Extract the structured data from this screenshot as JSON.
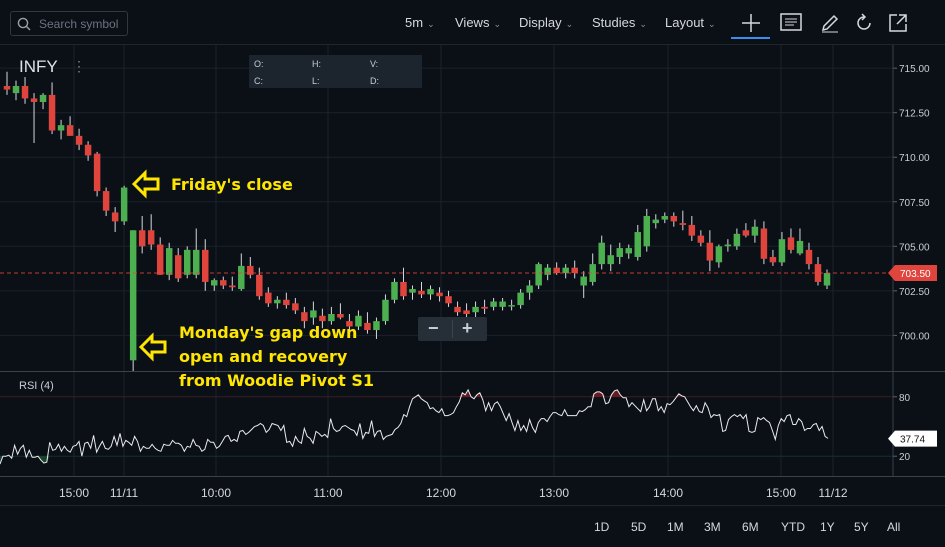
{
  "search": {
    "placeholder": "Search symbol"
  },
  "toolbar": {
    "interval": "5m",
    "views": "Views",
    "display": "Display",
    "studies": "Studies",
    "layout": "Layout"
  },
  "symbol": "INFY",
  "ohlc_labels": {
    "o": "O:",
    "h": "H:",
    "v": "V:",
    "c": "C:",
    "l": "L:",
    "d": "D:"
  },
  "annotations": {
    "friday_close": "Friday's close",
    "monday_line1": "Monday's gap down",
    "monday_line2": "open and recovery",
    "monday_line3": "from Woodie Pivot S1"
  },
  "rsi_label": "RSI (4)",
  "ranges": [
    "1D",
    "5D",
    "1M",
    "3M",
    "6M",
    "YTD",
    "1Y",
    "5Y",
    "All"
  ],
  "colors": {
    "up": "#4caf50",
    "down": "#e0453d",
    "accent": "#3c8df0",
    "annotation": "#ffe600",
    "background": "#0b0f16"
  },
  "icons": [
    "search-icon",
    "crosshair-icon",
    "comment-icon",
    "pencil-icon",
    "reset-icon",
    "expand-icon"
  ],
  "chart_data": [
    {
      "type": "candlestick",
      "symbol": "INFY",
      "ylim": [
        698.0,
        716.3
      ],
      "yticks": [
        "715.00",
        "712.50",
        "710.00",
        "707.50",
        "705.00",
        "702.50",
        "700.00"
      ],
      "xtick_labels": [
        "15:00",
        "11/11",
        "10:00",
        "11:00",
        "12:00",
        "13:00",
        "14:00",
        "15:00",
        "11/12"
      ],
      "last_price": "703.50",
      "candles": [
        {
          "o": 714.0,
          "h": 714.8,
          "l": 713.5,
          "c": 713.8
        },
        {
          "o": 713.6,
          "h": 714.3,
          "l": 713.2,
          "c": 714.0
        },
        {
          "o": 714.0,
          "h": 714.5,
          "l": 713.0,
          "c": 713.3
        },
        {
          "o": 713.3,
          "h": 713.6,
          "l": 710.8,
          "c": 713.1
        },
        {
          "o": 713.1,
          "h": 713.6,
          "l": 712.7,
          "c": 713.5
        },
        {
          "o": 713.5,
          "h": 714.2,
          "l": 711.3,
          "c": 711.5
        },
        {
          "o": 711.5,
          "h": 712.1,
          "l": 711.0,
          "c": 711.8
        },
        {
          "o": 711.8,
          "h": 712.3,
          "l": 711.2,
          "c": 711.2
        },
        {
          "o": 711.2,
          "h": 711.6,
          "l": 710.4,
          "c": 710.7
        },
        {
          "o": 710.7,
          "h": 710.9,
          "l": 709.8,
          "c": 710.1
        },
        {
          "o": 710.2,
          "h": 710.3,
          "l": 707.8,
          "c": 708.1
        },
        {
          "o": 708.1,
          "h": 708.3,
          "l": 706.7,
          "c": 707.0
        },
        {
          "o": 706.9,
          "h": 707.2,
          "l": 705.8,
          "c": 706.4
        },
        {
          "o": 706.4,
          "h": 708.4,
          "l": 706.2,
          "c": 708.3
        },
        {
          "o": 698.6,
          "h": 705.9,
          "l": 698.0,
          "c": 705.9
        },
        {
          "o": 705.9,
          "h": 706.7,
          "l": 704.6,
          "c": 705.0
        },
        {
          "o": 705.9,
          "h": 706.8,
          "l": 704.8,
          "c": 705.1
        },
        {
          "o": 705.1,
          "h": 705.5,
          "l": 703.4,
          "c": 703.4
        },
        {
          "o": 703.4,
          "h": 705.2,
          "l": 703.1,
          "c": 704.9
        },
        {
          "o": 704.5,
          "h": 704.9,
          "l": 703.0,
          "c": 703.2
        },
        {
          "o": 703.4,
          "h": 705.0,
          "l": 703.2,
          "c": 704.8
        },
        {
          "o": 703.4,
          "h": 706.0,
          "l": 703.2,
          "c": 704.8
        },
        {
          "o": 704.8,
          "h": 705.4,
          "l": 702.5,
          "c": 703.0
        },
        {
          "o": 702.8,
          "h": 703.2,
          "l": 702.5,
          "c": 703.1
        },
        {
          "o": 703.1,
          "h": 703.3,
          "l": 702.6,
          "c": 702.8
        },
        {
          "o": 702.8,
          "h": 703.3,
          "l": 702.5,
          "c": 702.7
        },
        {
          "o": 702.6,
          "h": 704.6,
          "l": 702.5,
          "c": 703.9
        },
        {
          "o": 703.9,
          "h": 704.4,
          "l": 703.2,
          "c": 703.4
        },
        {
          "o": 703.4,
          "h": 703.8,
          "l": 702.0,
          "c": 702.2
        },
        {
          "o": 702.4,
          "h": 702.7,
          "l": 701.6,
          "c": 701.8
        },
        {
          "o": 701.8,
          "h": 702.2,
          "l": 701.5,
          "c": 702.0
        },
        {
          "o": 702.0,
          "h": 702.4,
          "l": 701.5,
          "c": 701.7
        },
        {
          "o": 701.8,
          "h": 702.1,
          "l": 701.2,
          "c": 701.4
        },
        {
          "o": 701.3,
          "h": 701.6,
          "l": 700.4,
          "c": 700.8
        },
        {
          "o": 701.0,
          "h": 701.9,
          "l": 700.6,
          "c": 701.4
        },
        {
          "o": 701.1,
          "h": 701.5,
          "l": 700.4,
          "c": 700.8
        },
        {
          "o": 700.8,
          "h": 701.6,
          "l": 700.6,
          "c": 701.2
        },
        {
          "o": 701.2,
          "h": 701.8,
          "l": 700.9,
          "c": 701.0
        },
        {
          "o": 700.8,
          "h": 701.2,
          "l": 700.1,
          "c": 700.5
        },
        {
          "o": 700.5,
          "h": 701.4,
          "l": 700.3,
          "c": 701.1
        },
        {
          "o": 700.7,
          "h": 701.3,
          "l": 700.1,
          "c": 700.3
        },
        {
          "o": 700.3,
          "h": 701.0,
          "l": 699.8,
          "c": 700.8
        },
        {
          "o": 700.8,
          "h": 702.3,
          "l": 700.6,
          "c": 702.0
        },
        {
          "o": 702.0,
          "h": 703.2,
          "l": 701.8,
          "c": 703.0
        },
        {
          "o": 703.0,
          "h": 703.8,
          "l": 702.0,
          "c": 702.2
        },
        {
          "o": 702.4,
          "h": 702.8,
          "l": 702.0,
          "c": 702.6
        },
        {
          "o": 702.5,
          "h": 703.0,
          "l": 702.1,
          "c": 702.3
        },
        {
          "o": 702.3,
          "h": 702.8,
          "l": 702.0,
          "c": 702.6
        },
        {
          "o": 702.4,
          "h": 702.7,
          "l": 701.9,
          "c": 702.2
        },
        {
          "o": 702.2,
          "h": 702.5,
          "l": 701.6,
          "c": 701.8
        },
        {
          "o": 701.6,
          "h": 701.9,
          "l": 701.1,
          "c": 701.3
        },
        {
          "o": 701.4,
          "h": 701.8,
          "l": 701.0,
          "c": 701.2
        },
        {
          "o": 701.3,
          "h": 701.9,
          "l": 701.0,
          "c": 701.6
        },
        {
          "o": 701.6,
          "h": 702.0,
          "l": 701.2,
          "c": 701.5
        },
        {
          "o": 701.6,
          "h": 702.1,
          "l": 701.4,
          "c": 701.9
        },
        {
          "o": 701.6,
          "h": 702.1,
          "l": 701.4,
          "c": 701.9
        },
        {
          "o": 701.7,
          "h": 702.0,
          "l": 701.4,
          "c": 701.7
        },
        {
          "o": 701.7,
          "h": 702.6,
          "l": 701.5,
          "c": 702.4
        },
        {
          "o": 702.4,
          "h": 703.1,
          "l": 702.0,
          "c": 702.8
        },
        {
          "o": 702.8,
          "h": 704.1,
          "l": 702.6,
          "c": 704.0
        },
        {
          "o": 703.4,
          "h": 704.0,
          "l": 703.1,
          "c": 703.8
        },
        {
          "o": 703.8,
          "h": 704.1,
          "l": 703.4,
          "c": 703.5
        },
        {
          "o": 703.5,
          "h": 704.0,
          "l": 703.2,
          "c": 703.8
        },
        {
          "o": 703.8,
          "h": 704.2,
          "l": 703.2,
          "c": 703.5
        },
        {
          "o": 702.8,
          "h": 703.6,
          "l": 702.1,
          "c": 703.3
        },
        {
          "o": 703.0,
          "h": 704.6,
          "l": 702.8,
          "c": 704.0
        },
        {
          "o": 704.0,
          "h": 705.6,
          "l": 703.7,
          "c": 705.2
        },
        {
          "o": 704.0,
          "h": 705.1,
          "l": 703.6,
          "c": 704.5
        },
        {
          "o": 704.4,
          "h": 705.2,
          "l": 704.0,
          "c": 704.9
        },
        {
          "o": 704.6,
          "h": 705.1,
          "l": 704.3,
          "c": 704.9
        },
        {
          "o": 704.4,
          "h": 706.2,
          "l": 704.2,
          "c": 705.8
        },
        {
          "o": 705.0,
          "h": 707.1,
          "l": 704.7,
          "c": 706.7
        },
        {
          "o": 706.3,
          "h": 706.8,
          "l": 706.0,
          "c": 706.5
        },
        {
          "o": 706.5,
          "h": 706.9,
          "l": 706.3,
          "c": 706.7
        },
        {
          "o": 706.7,
          "h": 706.9,
          "l": 706.1,
          "c": 706.4
        },
        {
          "o": 706.3,
          "h": 707.0,
          "l": 705.9,
          "c": 706.2
        },
        {
          "o": 706.2,
          "h": 706.7,
          "l": 705.3,
          "c": 705.6
        },
        {
          "o": 705.6,
          "h": 705.9,
          "l": 705.0,
          "c": 705.2
        },
        {
          "o": 705.2,
          "h": 705.9,
          "l": 703.6,
          "c": 704.2
        },
        {
          "o": 704.1,
          "h": 705.1,
          "l": 703.8,
          "c": 705.0
        },
        {
          "o": 705.0,
          "h": 705.4,
          "l": 704.7,
          "c": 705.1
        },
        {
          "o": 705.0,
          "h": 706.0,
          "l": 704.8,
          "c": 705.7
        },
        {
          "o": 705.9,
          "h": 706.3,
          "l": 705.5,
          "c": 705.6
        },
        {
          "o": 705.6,
          "h": 706.5,
          "l": 705.2,
          "c": 706.1
        },
        {
          "o": 706.0,
          "h": 706.4,
          "l": 704.0,
          "c": 704.3
        },
        {
          "o": 704.4,
          "h": 704.8,
          "l": 703.9,
          "c": 704.1
        },
        {
          "o": 704.1,
          "h": 705.8,
          "l": 703.9,
          "c": 705.4
        },
        {
          "o": 705.5,
          "h": 706.0,
          "l": 704.6,
          "c": 704.8
        },
        {
          "o": 704.6,
          "h": 706.0,
          "l": 704.5,
          "c": 705.3
        },
        {
          "o": 704.8,
          "h": 705.2,
          "l": 703.7,
          "c": 704.0
        },
        {
          "o": 704.0,
          "h": 704.4,
          "l": 702.8,
          "c": 703.0
        },
        {
          "o": 702.8,
          "h": 703.7,
          "l": 702.6,
          "c": 703.5
        }
      ]
    },
    {
      "type": "line",
      "title": "RSI (4)",
      "ylim": [
        0,
        100
      ],
      "yticks": [
        "80",
        "20"
      ],
      "reference_lines": [
        80,
        20
      ],
      "last_value": "37.74",
      "values": [
        12,
        20,
        20,
        21,
        18,
        31,
        22,
        28,
        31,
        19,
        26,
        19,
        19,
        20,
        16,
        13,
        14,
        34,
        26,
        27,
        32,
        25,
        30,
        26,
        24,
        30,
        31,
        35,
        20,
        33,
        34,
        28,
        41,
        24,
        30,
        35,
        28,
        27,
        30,
        40,
        31,
        43,
        30,
        36,
        34,
        31,
        40,
        35,
        25,
        30,
        28,
        28,
        32,
        28,
        26,
        25,
        32,
        31,
        31,
        36,
        33,
        33,
        31,
        25,
        30,
        29,
        37,
        31,
        30,
        25,
        27,
        37,
        34,
        34,
        28,
        30,
        35,
        40,
        41,
        35,
        37,
        35,
        45,
        46,
        42,
        44,
        47,
        50,
        51,
        53,
        51,
        44,
        47,
        53,
        52,
        51,
        46,
        51,
        34,
        35,
        30,
        40,
        35,
        33,
        48,
        40,
        38,
        33,
        45,
        43,
        40,
        42,
        39,
        58,
        48,
        45,
        46,
        50,
        51,
        49,
        47,
        46,
        41,
        53,
        38,
        44,
        43,
        56,
        40,
        45,
        46,
        37,
        40,
        41,
        42,
        47,
        49,
        53,
        62,
        60,
        70,
        78,
        80,
        82,
        78,
        76,
        74,
        68,
        69,
        66,
        64,
        68,
        61,
        61,
        62,
        64,
        70,
        75,
        84,
        82,
        87,
        80,
        78,
        82,
        84,
        77,
        66,
        74,
        66,
        73,
        75,
        70,
        63,
        56,
        63,
        54,
        46,
        56,
        46,
        51,
        45,
        57,
        49,
        44,
        54,
        58,
        58,
        55,
        60,
        64,
        64,
        62,
        61,
        67,
        61,
        61,
        61,
        61,
        66,
        65,
        67,
        70,
        70,
        83,
        85,
        85,
        83,
        73,
        74,
        82,
        86,
        87,
        82,
        79,
        79,
        70,
        74,
        71,
        68,
        65,
        77,
        66,
        70,
        78,
        78,
        66,
        70,
        64,
        73,
        72,
        75,
        79,
        83,
        81,
        80,
        75,
        70,
        66,
        71,
        65,
        64,
        74,
        69,
        59,
        62,
        61,
        62,
        45,
        46,
        57,
        60,
        62,
        60,
        62,
        58,
        62,
        45,
        44,
        45,
        59,
        57,
        59,
        56,
        54,
        46,
        37,
        51,
        58,
        55,
        61,
        62,
        52,
        52,
        58,
        55,
        46,
        48,
        48,
        52,
        53,
        46,
        50,
        40,
        38
      ]
    }
  ]
}
